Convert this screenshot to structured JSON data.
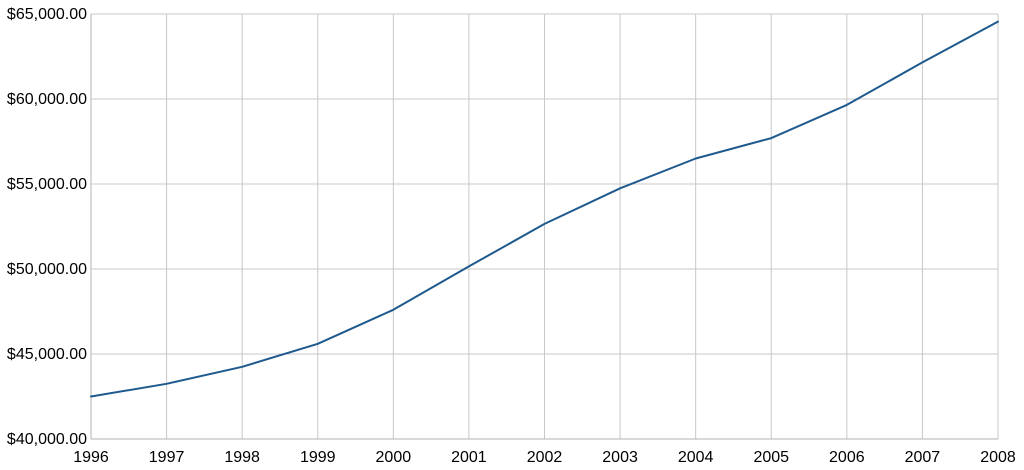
{
  "chart_data": {
    "type": "line",
    "title": "",
    "xlabel": "",
    "ylabel": "",
    "categories": [
      "1996",
      "1997",
      "1998",
      "1999",
      "2000",
      "2001",
      "2002",
      "2003",
      "2004",
      "2005",
      "2006",
      "2007",
      "2008"
    ],
    "series": [
      {
        "values": [
          42500,
          43250,
          44250,
          45600,
          47600,
          50150,
          52650,
          54750,
          56500,
          57700,
          59650,
          62150,
          64550
        ],
        "color": "#1f5a8e"
      }
    ],
    "ylim": [
      40000,
      65000
    ],
    "y_ticks": [
      40000,
      45000,
      50000,
      55000,
      60000,
      65000
    ],
    "y_tick_labels": [
      "$40,000.00",
      "$45,000.00",
      "$50,000.00",
      "$55,000.00",
      "$60,000.00",
      "$65,000.00"
    ],
    "grid": true,
    "legend": "none"
  }
}
